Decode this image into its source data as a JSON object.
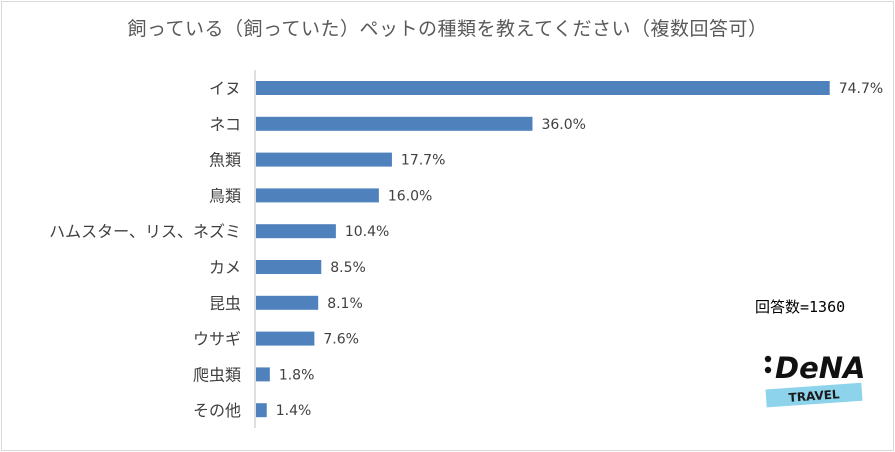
{
  "chart_data": {
    "type": "bar",
    "orientation": "horizontal",
    "title": "飼っている（飼っていた）ペットの種類を教えてください（複数回答可）",
    "categories": [
      "イヌ",
      "ネコ",
      "魚類",
      "鳥類",
      "ハムスター、リス、ネズミ",
      "カメ",
      "昆虫",
      "ウサギ",
      "爬虫類",
      "その他"
    ],
    "values": [
      74.7,
      36.0,
      17.7,
      16.0,
      10.4,
      8.5,
      8.1,
      7.6,
      1.8,
      1.4
    ],
    "value_labels": [
      "74.7%",
      "36.0%",
      "17.7%",
      "16.0%",
      "10.4%",
      "8.5%",
      "8.1%",
      "7.6%",
      "1.8%",
      "1.4%"
    ],
    "xlim": [
      0,
      75
    ],
    "grid": false,
    "legend": "none",
    "bar_color": "#4f81bd"
  },
  "note": "回答数=1360",
  "logo": {
    "brand": "DeNA",
    "sub": "TRAVEL",
    "accent": "#8dd3ec"
  }
}
